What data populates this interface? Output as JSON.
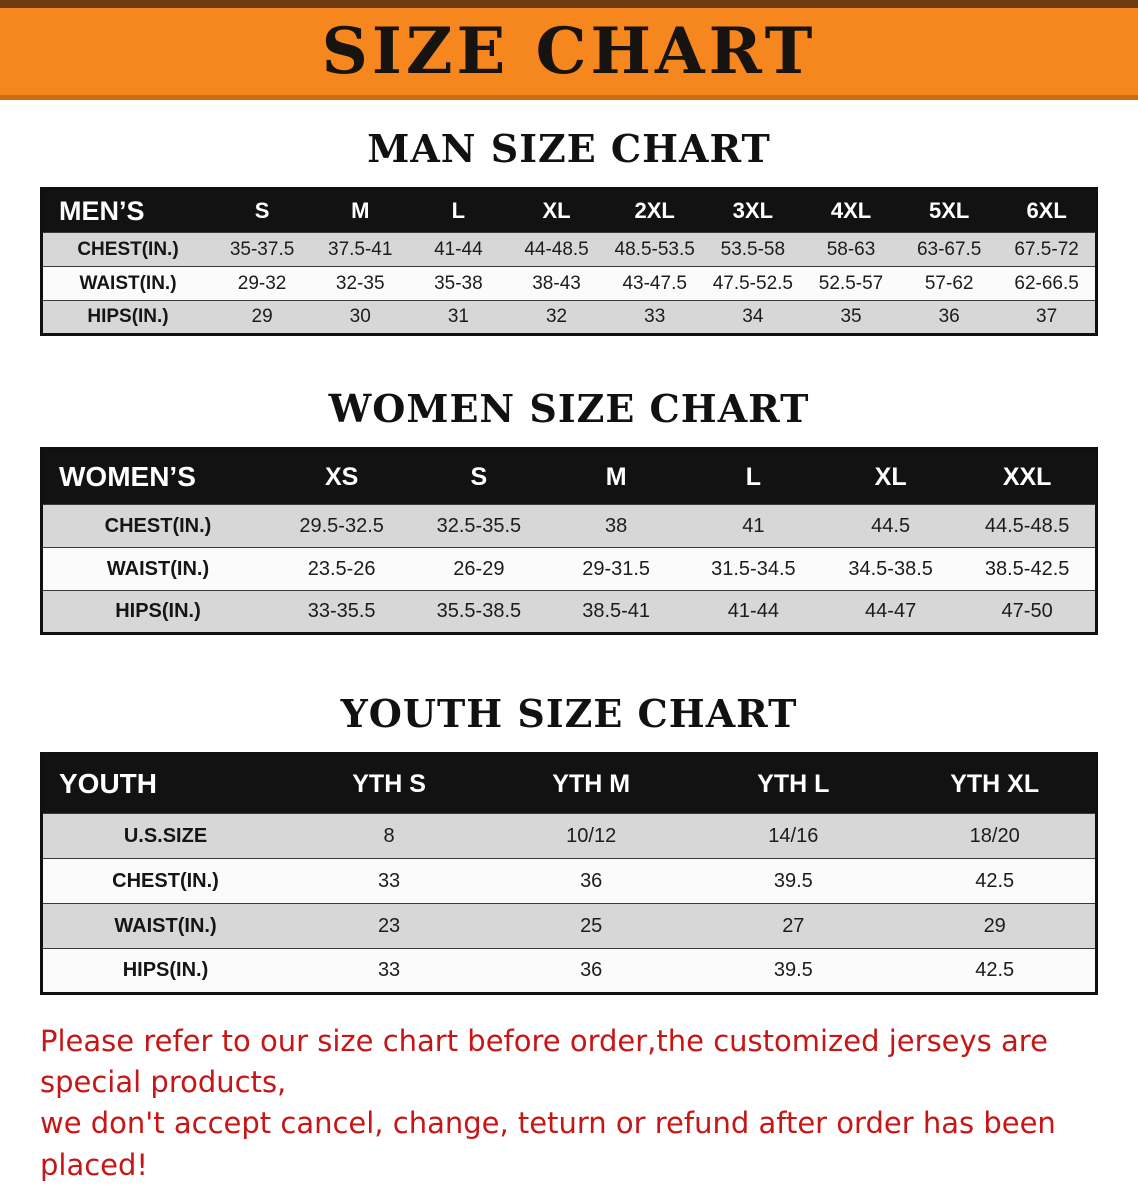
{
  "banner": {
    "title": "SIZE CHART",
    "bg_color": "#f6861e",
    "text_color": "#171310"
  },
  "sections": [
    {
      "id": "men",
      "heading": "MAN SIZE CHART",
      "table": {
        "header": [
          "MEN’S",
          "S",
          "M",
          "L",
          "XL",
          "2XL",
          "3XL",
          "4XL",
          "5XL",
          "6XL"
        ],
        "rows": [
          {
            "label": "CHEST(IN.)",
            "values": [
              "35-37.5",
              "37.5-41",
              "41-44",
              "44-48.5",
              "48.5-53.5",
              "53.5-58",
              "58-63",
              "63-67.5",
              "67.5-72"
            ]
          },
          {
            "label": "WAIST(IN.)",
            "values": [
              "29-32",
              "32-35",
              "35-38",
              "38-43",
              "43-47.5",
              "47.5-52.5",
              "52.5-57",
              "57-62",
              "62-66.5"
            ]
          },
          {
            "label": "HIPS(IN.)",
            "values": [
              "29",
              "30",
              "31",
              "32",
              "33",
              "34",
              "35",
              "36",
              "37"
            ]
          }
        ]
      }
    },
    {
      "id": "women",
      "heading": "WOMEN SIZE CHART",
      "table": {
        "header": [
          "WOMEN’S",
          "XS",
          "S",
          "M",
          "L",
          "XL",
          "XXL"
        ],
        "rows": [
          {
            "label": "CHEST(IN.)",
            "values": [
              "29.5-32.5",
              "32.5-35.5",
              "38",
              "41",
              "44.5",
              "44.5-48.5"
            ]
          },
          {
            "label": "WAIST(IN.)",
            "values": [
              "23.5-26",
              "26-29",
              "29-31.5",
              "31.5-34.5",
              "34.5-38.5",
              "38.5-42.5"
            ]
          },
          {
            "label": "HIPS(IN.)",
            "values": [
              "33-35.5",
              "35.5-38.5",
              "38.5-41",
              "41-44",
              "44-47",
              "47-50"
            ]
          }
        ]
      }
    },
    {
      "id": "youth",
      "heading": "YOUTH SIZE CHART",
      "table": {
        "header": [
          "YOUTH",
          "YTH S",
          "YTH M",
          "YTH L",
          "YTH XL"
        ],
        "rows": [
          {
            "label": "U.S.SIZE",
            "values": [
              "8",
              "10/12",
              "14/16",
              "18/20"
            ]
          },
          {
            "label": "CHEST(IN.)",
            "values": [
              "33",
              "36",
              "39.5",
              "42.5"
            ]
          },
          {
            "label": "WAIST(IN.)",
            "values": [
              "23",
              "25",
              "27",
              "29"
            ]
          },
          {
            "label": "HIPS(IN.)",
            "values": [
              "33",
              "36",
              "39.5",
              "42.5"
            ]
          }
        ]
      }
    }
  ],
  "footer": {
    "line1": "Please refer to our size chart before order,the customized jerseys are special products,",
    "line2": "we don't accept cancel, change, teturn or refund after order has been placed!",
    "text_color": "#c81616"
  }
}
